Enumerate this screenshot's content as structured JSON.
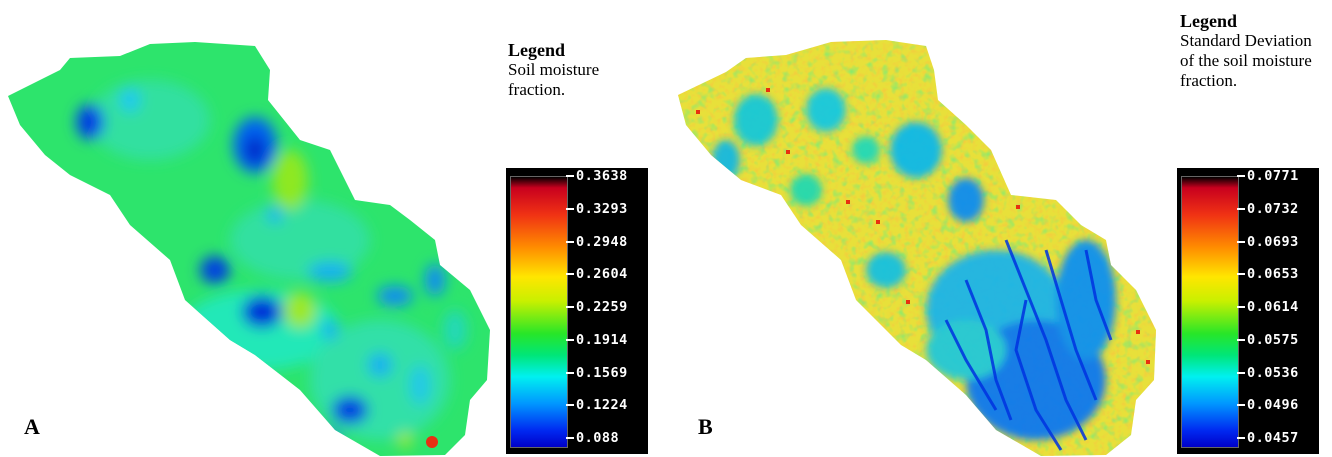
{
  "panel_a": {
    "label": "A",
    "legend_title": "Legend",
    "legend_description": "Soil moisture fraction.",
    "colorbar_ticks": [
      "0.3638",
      "0.3293",
      "0.2948",
      "0.2604",
      "0.2259",
      "0.1914",
      "0.1569",
      "0.1224",
      "0.088"
    ]
  },
  "panel_b": {
    "label": "B",
    "legend_title": "Legend",
    "legend_description": "Standard Deviation of the soil moisture fraction.",
    "colorbar_ticks": [
      "0.0771",
      "0.0732",
      "0.0693",
      "0.0653",
      "0.0614",
      "0.0575",
      "0.0536",
      "0.0496",
      "0.0457"
    ]
  },
  "colors": {
    "background": "#ffffff",
    "colorbar_frame": "#000000",
    "colorbar_text": "#ffffff",
    "map_a_base": "#2ce66a",
    "map_b_base": "#e8e23a"
  },
  "colormap": [
    "#000000",
    "#d0101e",
    "#ff8c00",
    "#ffe600",
    "#28e628",
    "#00f0f0",
    "#0096ff",
    "#0000c8"
  ]
}
